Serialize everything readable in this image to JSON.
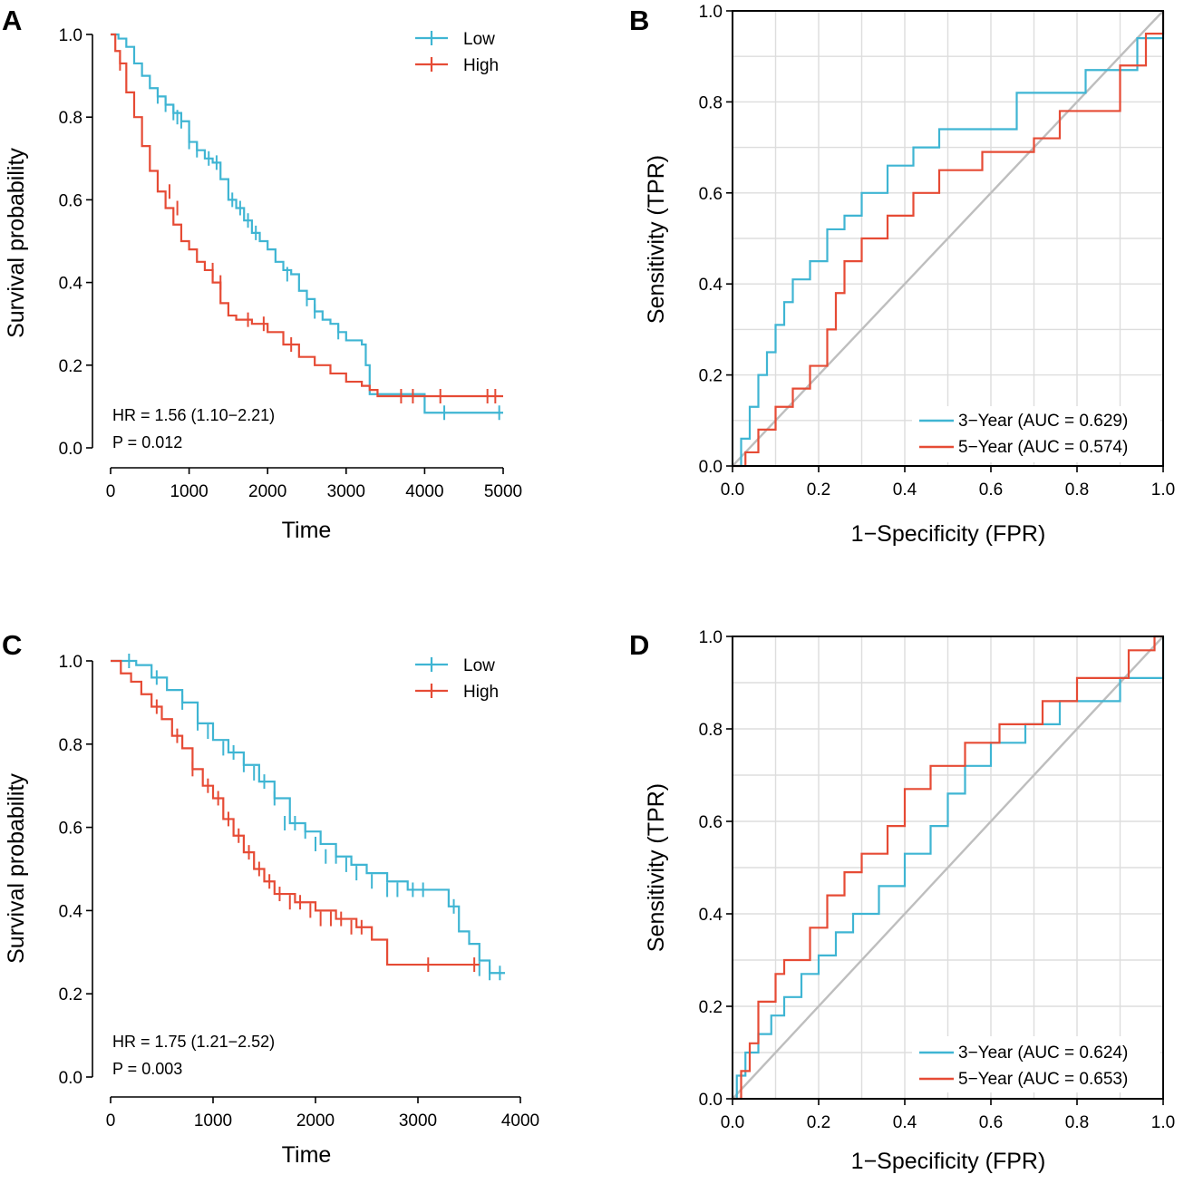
{
  "colors": {
    "low": "#3FB5D3",
    "high": "#E64B35",
    "diag": "#BEBEBE",
    "grid": "#DDDDDD",
    "axis": "#000000"
  },
  "chart_data": [
    {
      "panel": "A",
      "type": "line",
      "subtype": "kaplan-meier",
      "xlabel": "Time",
      "ylabel": "Survival probability",
      "xlim": [
        0,
        5000
      ],
      "ylim": [
        0,
        1
      ],
      "xticks": [
        "0",
        "1000",
        "2000",
        "3000",
        "4000",
        "5000"
      ],
      "yticks": [
        "0.0",
        "0.2",
        "0.4",
        "0.6",
        "0.8",
        "1.0"
      ],
      "legend": [
        "Low",
        "High"
      ],
      "annotations": [
        "HR = 1.56 (1.10−2.21)",
        "P = 0.012"
      ],
      "series": [
        {
          "name": "Low",
          "x": [
            0,
            100,
            200,
            300,
            400,
            500,
            600,
            700,
            800,
            900,
            1000,
            1100,
            1200,
            1300,
            1400,
            1500,
            1600,
            1700,
            1800,
            1900,
            2000,
            2100,
            2200,
            2300,
            2400,
            2500,
            2600,
            2700,
            2800,
            2900,
            3000,
            3200,
            3250,
            3300,
            4000,
            5000
          ],
          "y": [
            1.0,
            0.99,
            0.97,
            0.93,
            0.9,
            0.87,
            0.85,
            0.83,
            0.81,
            0.79,
            0.74,
            0.72,
            0.7,
            0.69,
            0.65,
            0.6,
            0.58,
            0.55,
            0.52,
            0.5,
            0.48,
            0.45,
            0.43,
            0.42,
            0.38,
            0.36,
            0.33,
            0.31,
            0.3,
            0.28,
            0.26,
            0.25,
            0.2,
            0.13,
            0.085,
            0.085
          ],
          "censor_x": [
            600,
            700,
            800,
            850,
            900,
            1000,
            1100,
            1250,
            1350,
            1550,
            1650,
            1750,
            1850,
            2250,
            2500,
            2600,
            2900,
            4250,
            4950
          ],
          "censor_y": [
            0.85,
            0.83,
            0.81,
            0.8,
            0.79,
            0.74,
            0.72,
            0.7,
            0.69,
            0.6,
            0.58,
            0.55,
            0.52,
            0.42,
            0.36,
            0.33,
            0.28,
            0.085,
            0.085
          ]
        },
        {
          "name": "High",
          "x": [
            0,
            60,
            120,
            200,
            300,
            400,
            500,
            600,
            700,
            800,
            900,
            1000,
            1100,
            1200,
            1300,
            1400,
            1500,
            1600,
            1800,
            2000,
            2200,
            2400,
            2600,
            2800,
            3000,
            3200,
            3300,
            3400,
            5000
          ],
          "y": [
            1.0,
            0.96,
            0.93,
            0.86,
            0.8,
            0.73,
            0.67,
            0.62,
            0.58,
            0.54,
            0.5,
            0.48,
            0.45,
            0.43,
            0.4,
            0.35,
            0.32,
            0.31,
            0.3,
            0.28,
            0.25,
            0.22,
            0.2,
            0.18,
            0.16,
            0.15,
            0.14,
            0.125,
            0.125
          ],
          "censor_x": [
            120,
            750,
            850,
            1300,
            1400,
            1750,
            1950,
            2300,
            3700,
            3850,
            4200,
            4800,
            4900
          ],
          "censor_y": [
            0.93,
            0.62,
            0.58,
            0.43,
            0.4,
            0.31,
            0.3,
            0.25,
            0.125,
            0.125,
            0.125,
            0.125,
            0.125
          ]
        }
      ]
    },
    {
      "panel": "B",
      "type": "line",
      "subtype": "roc",
      "xlabel": "1−Specificity (FPR)",
      "ylabel": "Sensitivity (TPR)",
      "xlim": [
        0,
        1
      ],
      "ylim": [
        0,
        1
      ],
      "xticks": [
        "0.0",
        "0.2",
        "0.4",
        "0.6",
        "0.8",
        "1.0"
      ],
      "yticks": [
        "0.0",
        "0.2",
        "0.4",
        "0.6",
        "0.8",
        "1.0"
      ],
      "legend": [
        "3−Year (AUC = 0.629)",
        "5−Year (AUC = 0.574)"
      ],
      "series": [
        {
          "name": "3−Year",
          "auc": 0.629,
          "x": [
            0,
            0.02,
            0.02,
            0.04,
            0.04,
            0.06,
            0.06,
            0.08,
            0.08,
            0.1,
            0.1,
            0.12,
            0.12,
            0.14,
            0.14,
            0.18,
            0.18,
            0.22,
            0.22,
            0.26,
            0.26,
            0.3,
            0.3,
            0.36,
            0.36,
            0.42,
            0.42,
            0.48,
            0.48,
            0.66,
            0.66,
            0.82,
            0.82,
            0.94,
            0.94,
            1.0,
            1.0
          ],
          "y": [
            0,
            0,
            0.06,
            0.06,
            0.13,
            0.13,
            0.2,
            0.2,
            0.25,
            0.25,
            0.31,
            0.31,
            0.36,
            0.36,
            0.41,
            0.41,
            0.45,
            0.45,
            0.52,
            0.52,
            0.55,
            0.55,
            0.6,
            0.6,
            0.66,
            0.66,
            0.7,
            0.7,
            0.74,
            0.74,
            0.82,
            0.82,
            0.87,
            0.87,
            0.94,
            0.94,
            1.0
          ]
        },
        {
          "name": "5−Year",
          "auc": 0.574,
          "x": [
            0,
            0.03,
            0.03,
            0.06,
            0.06,
            0.1,
            0.1,
            0.14,
            0.14,
            0.18,
            0.18,
            0.22,
            0.22,
            0.24,
            0.24,
            0.26,
            0.26,
            0.3,
            0.3,
            0.36,
            0.36,
            0.42,
            0.42,
            0.48,
            0.48,
            0.58,
            0.58,
            0.7,
            0.7,
            0.76,
            0.76,
            0.9,
            0.9,
            0.96,
            0.96,
            1.0,
            1.0
          ],
          "y": [
            0,
            0,
            0.03,
            0.03,
            0.08,
            0.08,
            0.13,
            0.13,
            0.17,
            0.17,
            0.22,
            0.22,
            0.3,
            0.3,
            0.38,
            0.38,
            0.45,
            0.45,
            0.5,
            0.5,
            0.55,
            0.55,
            0.6,
            0.6,
            0.65,
            0.65,
            0.69,
            0.69,
            0.72,
            0.72,
            0.78,
            0.78,
            0.88,
            0.88,
            0.95,
            0.95,
            1.0
          ]
        }
      ]
    },
    {
      "panel": "C",
      "type": "line",
      "subtype": "kaplan-meier",
      "xlabel": "Time",
      "ylabel": "Survival probability",
      "xlim": [
        0,
        4000
      ],
      "ylim": [
        0,
        1
      ],
      "xticks": [
        "0",
        "1000",
        "2000",
        "3000",
        "4000"
      ],
      "yticks": [
        "0.0",
        "0.2",
        "0.4",
        "0.6",
        "0.8",
        "1.0"
      ],
      "legend": [
        "Low",
        "High"
      ],
      "annotations": [
        "HR = 1.75 (1.21−2.52)",
        "P = 0.003"
      ],
      "series": [
        {
          "name": "Low",
          "x": [
            0,
            150,
            250,
            400,
            550,
            700,
            850,
            1000,
            1150,
            1300,
            1450,
            1600,
            1750,
            1900,
            2050,
            2200,
            2350,
            2500,
            2700,
            2900,
            3100,
            3300,
            3400,
            3500,
            3600,
            3700,
            3850
          ],
          "y": [
            1.0,
            1.0,
            0.99,
            0.96,
            0.93,
            0.9,
            0.85,
            0.81,
            0.78,
            0.75,
            0.71,
            0.67,
            0.61,
            0.59,
            0.56,
            0.53,
            0.51,
            0.49,
            0.47,
            0.45,
            0.45,
            0.41,
            0.35,
            0.32,
            0.28,
            0.25,
            0.25
          ],
          "censor_x": [
            180,
            450,
            700,
            850,
            950,
            1100,
            1200,
            1300,
            1400,
            1500,
            1600,
            1700,
            1800,
            1900,
            2000,
            2100,
            2200,
            2300,
            2400,
            2550,
            2700,
            2800,
            2950,
            3050,
            3350,
            3600,
            3700,
            3800
          ],
          "censor_y": [
            1.0,
            0.96,
            0.9,
            0.85,
            0.83,
            0.79,
            0.78,
            0.75,
            0.73,
            0.71,
            0.67,
            0.61,
            0.61,
            0.59,
            0.56,
            0.53,
            0.53,
            0.51,
            0.49,
            0.47,
            0.45,
            0.45,
            0.45,
            0.45,
            0.41,
            0.26,
            0.25,
            0.25
          ]
        },
        {
          "name": "High",
          "x": [
            0,
            100,
            200,
            300,
            400,
            500,
            600,
            700,
            800,
            900,
            1000,
            1100,
            1200,
            1300,
            1400,
            1500,
            1600,
            1800,
            2000,
            2200,
            2400,
            2550,
            2700,
            3600
          ],
          "y": [
            1.0,
            0.97,
            0.95,
            0.92,
            0.89,
            0.86,
            0.82,
            0.79,
            0.74,
            0.7,
            0.67,
            0.62,
            0.58,
            0.54,
            0.5,
            0.47,
            0.44,
            0.42,
            0.4,
            0.38,
            0.36,
            0.33,
            0.27,
            0.27
          ],
          "censor_x": [
            450,
            650,
            800,
            950,
            1050,
            1150,
            1250,
            1350,
            1450,
            1550,
            1650,
            1750,
            1850,
            1950,
            2050,
            2150,
            2250,
            2350,
            2450,
            3100,
            3550
          ],
          "censor_y": [
            0.89,
            0.82,
            0.74,
            0.7,
            0.67,
            0.62,
            0.58,
            0.54,
            0.5,
            0.47,
            0.44,
            0.42,
            0.42,
            0.4,
            0.38,
            0.38,
            0.38,
            0.36,
            0.36,
            0.27,
            0.27
          ]
        }
      ]
    },
    {
      "panel": "D",
      "type": "line",
      "subtype": "roc",
      "xlabel": "1−Specificity (FPR)",
      "ylabel": "Sensitivity (TPR)",
      "xlim": [
        0,
        1
      ],
      "ylim": [
        0,
        1
      ],
      "xticks": [
        "0.0",
        "0.2",
        "0.4",
        "0.6",
        "0.8",
        "1.0"
      ],
      "yticks": [
        "0.0",
        "0.2",
        "0.4",
        "0.6",
        "0.8",
        "1.0"
      ],
      "legend": [
        "3−Year (AUC = 0.624)",
        "5−Year (AUC = 0.653)"
      ],
      "series": [
        {
          "name": "3−Year",
          "auc": 0.624,
          "x": [
            0,
            0.01,
            0.01,
            0.03,
            0.03,
            0.06,
            0.06,
            0.09,
            0.09,
            0.12,
            0.12,
            0.16,
            0.16,
            0.2,
            0.2,
            0.24,
            0.24,
            0.28,
            0.28,
            0.34,
            0.34,
            0.4,
            0.4,
            0.46,
            0.46,
            0.5,
            0.5,
            0.54,
            0.54,
            0.6,
            0.6,
            0.68,
            0.68,
            0.76,
            0.76,
            0.9,
            0.9,
            1.0,
            1.0
          ],
          "y": [
            0,
            0,
            0.05,
            0.05,
            0.1,
            0.1,
            0.14,
            0.14,
            0.18,
            0.18,
            0.22,
            0.22,
            0.27,
            0.27,
            0.31,
            0.31,
            0.36,
            0.36,
            0.4,
            0.4,
            0.46,
            0.46,
            0.53,
            0.53,
            0.59,
            0.59,
            0.66,
            0.66,
            0.72,
            0.72,
            0.77,
            0.77,
            0.81,
            0.81,
            0.86,
            0.86,
            0.91,
            0.91,
            1.0
          ]
        },
        {
          "name": "5−Year",
          "auc": 0.653,
          "x": [
            0,
            0.02,
            0.02,
            0.04,
            0.04,
            0.06,
            0.06,
            0.1,
            0.1,
            0.12,
            0.12,
            0.18,
            0.18,
            0.22,
            0.22,
            0.26,
            0.26,
            0.3,
            0.3,
            0.36,
            0.36,
            0.4,
            0.4,
            0.46,
            0.46,
            0.54,
            0.54,
            0.62,
            0.62,
            0.72,
            0.72,
            0.8,
            0.8,
            0.92,
            0.92,
            0.98,
            0.98,
            1.0
          ],
          "y": [
            0,
            0,
            0.06,
            0.06,
            0.12,
            0.12,
            0.21,
            0.21,
            0.27,
            0.27,
            0.3,
            0.3,
            0.37,
            0.37,
            0.44,
            0.44,
            0.49,
            0.49,
            0.53,
            0.53,
            0.59,
            0.59,
            0.67,
            0.67,
            0.72,
            0.72,
            0.77,
            0.77,
            0.81,
            0.81,
            0.86,
            0.86,
            0.91,
            0.91,
            0.97,
            0.97,
            1.0,
            1.0
          ]
        }
      ]
    }
  ]
}
